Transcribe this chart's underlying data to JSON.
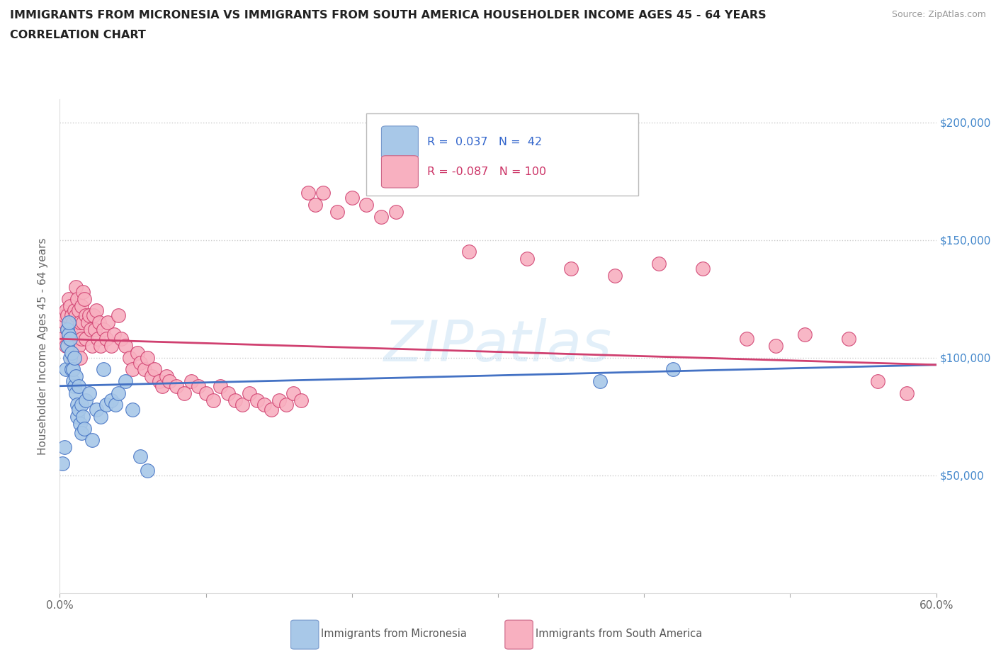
{
  "title_line1": "IMMIGRANTS FROM MICRONESIA VS IMMIGRANTS FROM SOUTH AMERICA HOUSEHOLDER INCOME AGES 45 - 64 YEARS",
  "title_line2": "CORRELATION CHART",
  "source_text": "Source: ZipAtlas.com",
  "ylabel": "Householder Income Ages 45 - 64 years",
  "xmin": 0.0,
  "xmax": 0.6,
  "ymin": 0,
  "ymax": 210000,
  "yticks": [
    0,
    50000,
    100000,
    150000,
    200000
  ],
  "ytick_labels": [
    "",
    "$50,000",
    "$100,000",
    "$150,000",
    "$200,000"
  ],
  "xticks": [
    0.0,
    0.1,
    0.2,
    0.3,
    0.4,
    0.5,
    0.6
  ],
  "xtick_labels": [
    "0.0%",
    "",
    "",
    "",
    "",
    "",
    "60.0%"
  ],
  "legend_R1": "0.037",
  "legend_N1": "42",
  "legend_R2": "-0.087",
  "legend_N2": "100",
  "color_micronesia": "#a8c8e8",
  "color_south_america": "#f8b0c0",
  "line_color_micronesia": "#4472c4",
  "line_color_south_america": "#d04070",
  "watermark": "ZIPatlas",
  "micronesia_x": [
    0.002,
    0.003,
    0.004,
    0.005,
    0.005,
    0.006,
    0.006,
    0.007,
    0.007,
    0.008,
    0.008,
    0.009,
    0.009,
    0.01,
    0.01,
    0.011,
    0.011,
    0.012,
    0.012,
    0.013,
    0.013,
    0.014,
    0.015,
    0.015,
    0.016,
    0.017,
    0.018,
    0.02,
    0.022,
    0.025,
    0.028,
    0.03,
    0.032,
    0.035,
    0.038,
    0.04,
    0.045,
    0.05,
    0.055,
    0.06,
    0.37,
    0.42
  ],
  "micronesia_y": [
    55000,
    62000,
    95000,
    105000,
    112000,
    110000,
    115000,
    100000,
    108000,
    95000,
    102000,
    90000,
    95000,
    88000,
    100000,
    92000,
    85000,
    80000,
    75000,
    88000,
    78000,
    72000,
    80000,
    68000,
    75000,
    70000,
    82000,
    85000,
    65000,
    78000,
    75000,
    95000,
    80000,
    82000,
    80000,
    85000,
    90000,
    78000,
    58000,
    52000,
    90000,
    95000
  ],
  "south_america_x": [
    0.002,
    0.003,
    0.003,
    0.004,
    0.004,
    0.005,
    0.005,
    0.006,
    0.006,
    0.007,
    0.007,
    0.008,
    0.008,
    0.009,
    0.009,
    0.01,
    0.01,
    0.011,
    0.011,
    0.012,
    0.012,
    0.013,
    0.013,
    0.014,
    0.014,
    0.015,
    0.015,
    0.016,
    0.016,
    0.017,
    0.018,
    0.018,
    0.019,
    0.02,
    0.021,
    0.022,
    0.023,
    0.024,
    0.025,
    0.026,
    0.027,
    0.028,
    0.03,
    0.032,
    0.033,
    0.035,
    0.037,
    0.04,
    0.042,
    0.045,
    0.048,
    0.05,
    0.053,
    0.055,
    0.058,
    0.06,
    0.063,
    0.065,
    0.068,
    0.07,
    0.073,
    0.075,
    0.08,
    0.085,
    0.09,
    0.095,
    0.1,
    0.105,
    0.11,
    0.115,
    0.12,
    0.125,
    0.13,
    0.135,
    0.14,
    0.145,
    0.15,
    0.155,
    0.16,
    0.165,
    0.17,
    0.175,
    0.18,
    0.19,
    0.2,
    0.21,
    0.22,
    0.23,
    0.28,
    0.32,
    0.35,
    0.38,
    0.41,
    0.44,
    0.47,
    0.49,
    0.51,
    0.54,
    0.56,
    0.58
  ],
  "south_america_y": [
    108000,
    115000,
    118000,
    120000,
    105000,
    118000,
    112000,
    125000,
    108000,
    122000,
    112000,
    118000,
    108000,
    115000,
    100000,
    120000,
    108000,
    130000,
    118000,
    125000,
    112000,
    120000,
    105000,
    115000,
    100000,
    122000,
    108000,
    128000,
    115000,
    125000,
    118000,
    108000,
    115000,
    118000,
    112000,
    105000,
    118000,
    112000,
    120000,
    108000,
    115000,
    105000,
    112000,
    108000,
    115000,
    105000,
    110000,
    118000,
    108000,
    105000,
    100000,
    95000,
    102000,
    98000,
    95000,
    100000,
    92000,
    95000,
    90000,
    88000,
    92000,
    90000,
    88000,
    85000,
    90000,
    88000,
    85000,
    82000,
    88000,
    85000,
    82000,
    80000,
    85000,
    82000,
    80000,
    78000,
    82000,
    80000,
    85000,
    82000,
    170000,
    165000,
    170000,
    162000,
    168000,
    165000,
    160000,
    162000,
    145000,
    142000,
    138000,
    135000,
    140000,
    138000,
    108000,
    105000,
    110000,
    108000,
    90000,
    85000
  ]
}
